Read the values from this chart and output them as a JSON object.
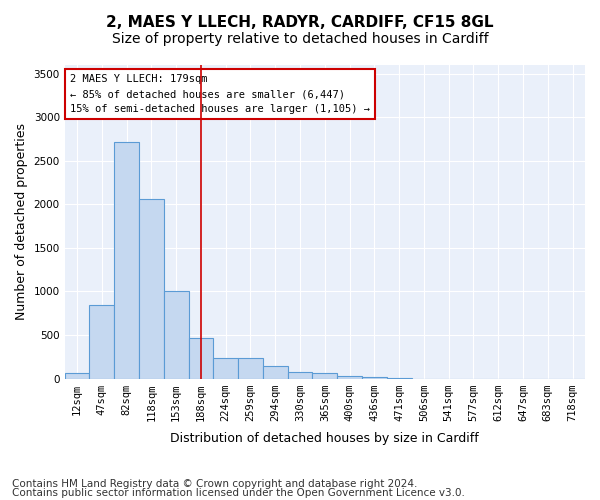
{
  "title_line1": "2, MAES Y LLECH, RADYR, CARDIFF, CF15 8GL",
  "title_line2": "Size of property relative to detached houses in Cardiff",
  "xlabel": "Distribution of detached houses by size in Cardiff",
  "ylabel": "Number of detached properties",
  "bar_color": "#c5d8f0",
  "bar_edge_color": "#5b9bd5",
  "bin_labels": [
    "12sqm",
    "47sqm",
    "82sqm",
    "118sqm",
    "153sqm",
    "188sqm",
    "224sqm",
    "259sqm",
    "294sqm",
    "330sqm",
    "365sqm",
    "400sqm",
    "436sqm",
    "471sqm",
    "506sqm",
    "541sqm",
    "577sqm",
    "612sqm",
    "647sqm",
    "683sqm",
    "718sqm"
  ],
  "bar_values": [
    60,
    850,
    2720,
    2060,
    1000,
    460,
    230,
    230,
    140,
    70,
    60,
    30,
    20,
    5,
    0,
    0,
    0,
    0,
    0,
    0,
    0
  ],
  "vline_x": 5.0,
  "vline_color": "#cc0000",
  "annotation_text": "2 MAES Y LLECH: 179sqm\n← 85% of detached houses are smaller (6,447)\n15% of semi-detached houses are larger (1,105) →",
  "annotation_box_color": "#ffffff",
  "annotation_box_edge": "#cc0000",
  "ylim": [
    0,
    3600
  ],
  "yticks": [
    0,
    500,
    1000,
    1500,
    2000,
    2500,
    3000,
    3500
  ],
  "bg_color": "#eaf0fa",
  "footer_line1": "Contains HM Land Registry data © Crown copyright and database right 2024.",
  "footer_line2": "Contains public sector information licensed under the Open Government Licence v3.0.",
  "title_fontsize": 11,
  "subtitle_fontsize": 10,
  "xlabel_fontsize": 9,
  "ylabel_fontsize": 9,
  "tick_fontsize": 7.5,
  "footer_fontsize": 7.5
}
